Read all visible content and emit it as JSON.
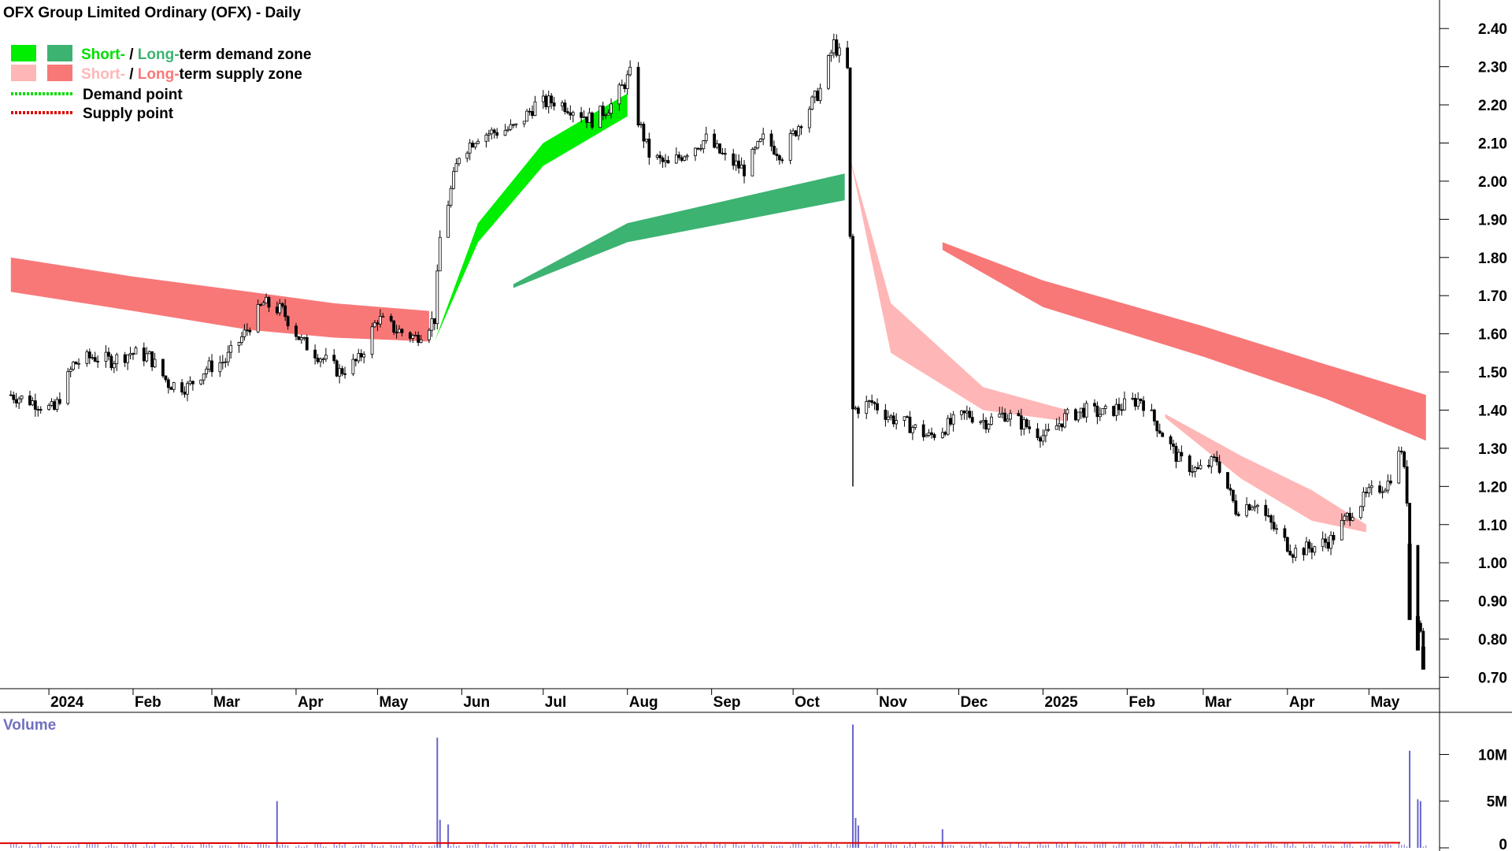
{
  "chart_data": {
    "type": "candlestick",
    "title": "OFX Group Limited Ordinary (OFX) - Daily",
    "y_ticks": [
      "2.40",
      "2.30",
      "2.20",
      "2.10",
      "2.00",
      "1.90",
      "1.80",
      "1.70",
      "1.60",
      "1.50",
      "1.40",
      "1.30",
      "1.20",
      "1.10",
      "1.00",
      "0.90",
      "0.80",
      "0.70"
    ],
    "ylim": [
      0.67,
      2.45
    ],
    "x_month_labels": [
      {
        "label": "2024",
        "month": "2024-01"
      },
      {
        "label": "Feb",
        "month": "2024-02"
      },
      {
        "label": "Mar",
        "month": "2024-03"
      },
      {
        "label": "Apr",
        "month": "2024-04"
      },
      {
        "label": "May",
        "month": "2024-05"
      },
      {
        "label": "Jun",
        "month": "2024-06"
      },
      {
        "label": "Jul",
        "month": "2024-07"
      },
      {
        "label": "Aug",
        "month": "2024-08"
      },
      {
        "label": "Sep",
        "month": "2024-09"
      },
      {
        "label": "Oct",
        "month": "2024-10"
      },
      {
        "label": "Nov",
        "month": "2024-11"
      },
      {
        "label": "Dec",
        "month": "2024-12"
      },
      {
        "label": "2025",
        "month": "2025-01"
      },
      {
        "label": "Feb",
        "month": "2025-02"
      },
      {
        "label": "Mar",
        "month": "2025-03"
      },
      {
        "label": "Apr",
        "month": "2025-04"
      },
      {
        "label": "May",
        "month": "2025-05"
      }
    ],
    "legend": [
      {
        "part1": "Short-",
        "part2": " / ",
        "part3": "Long-",
        "part4": "term demand zone",
        "swatch1": "#00ee00",
        "swatch2": "#3cb371",
        "color1": "#00dd00",
        "color2": "#3cb371"
      },
      {
        "part1": "Short-",
        "part2": " / ",
        "part3": "Long-",
        "part4": "term supply zone",
        "swatch1": "#ffb6b6",
        "swatch2": "#f87878",
        "color1": "#ffb6b6",
        "color2": "#f87878"
      },
      {
        "label": "Demand point",
        "line_color": "#00dd00"
      },
      {
        "label": "Supply point",
        "line_color": "#dd0000"
      }
    ],
    "close_series": [
      [
        "2023-12-18",
        1.44
      ],
      [
        "2023-12-27",
        1.42
      ],
      [
        "2024-01-03",
        1.4
      ],
      [
        "2024-01-10",
        1.52
      ],
      [
        "2024-01-17",
        1.54
      ],
      [
        "2024-01-24",
        1.53
      ],
      [
        "2024-01-31",
        1.55
      ],
      [
        "2024-02-07",
        1.54
      ],
      [
        "2024-02-14",
        1.47
      ],
      [
        "2024-02-21",
        1.46
      ],
      [
        "2024-02-28",
        1.51
      ],
      [
        "2024-03-06",
        1.53
      ],
      [
        "2024-03-13",
        1.6
      ],
      [
        "2024-03-20",
        1.68
      ],
      [
        "2024-03-27",
        1.66
      ],
      [
        "2024-04-03",
        1.58
      ],
      [
        "2024-04-10",
        1.54
      ],
      [
        "2024-04-17",
        1.5
      ],
      [
        "2024-04-24",
        1.53
      ],
      [
        "2024-05-01",
        1.64
      ],
      [
        "2024-05-08",
        1.61
      ],
      [
        "2024-05-15",
        1.59
      ],
      [
        "2024-05-22",
        1.64
      ],
      [
        "2024-05-24",
        1.85
      ],
      [
        "2024-05-31",
        2.07
      ],
      [
        "2024-06-07",
        2.12
      ],
      [
        "2024-06-14",
        2.13
      ],
      [
        "2024-06-21",
        2.14
      ],
      [
        "2024-06-28",
        2.2
      ],
      [
        "2024-07-05",
        2.21
      ],
      [
        "2024-07-12",
        2.19
      ],
      [
        "2024-07-19",
        2.16
      ],
      [
        "2024-07-26",
        2.2
      ],
      [
        "2024-08-02",
        2.28
      ],
      [
        "2024-08-05",
        2.16
      ],
      [
        "2024-08-09",
        2.07
      ],
      [
        "2024-08-16",
        2.04
      ],
      [
        "2024-08-23",
        2.08
      ],
      [
        "2024-08-30",
        2.11
      ],
      [
        "2024-09-06",
        2.06
      ],
      [
        "2024-09-13",
        2.03
      ],
      [
        "2024-09-20",
        2.11
      ],
      [
        "2024-09-27",
        2.07
      ],
      [
        "2024-10-04",
        2.16
      ],
      [
        "2024-10-11",
        2.24
      ],
      [
        "2024-10-16",
        2.36
      ],
      [
        "2024-10-21",
        2.29
      ],
      [
        "2024-10-23",
        1.4
      ],
      [
        "2024-10-30",
        1.42
      ],
      [
        "2024-11-06",
        1.38
      ],
      [
        "2024-11-13",
        1.36
      ],
      [
        "2024-11-20",
        1.33
      ],
      [
        "2024-11-27",
        1.36
      ],
      [
        "2024-12-04",
        1.39
      ],
      [
        "2024-12-11",
        1.37
      ],
      [
        "2024-12-18",
        1.39
      ],
      [
        "2025-01-02",
        1.33
      ],
      [
        "2025-01-09",
        1.38
      ],
      [
        "2025-01-16",
        1.4
      ],
      [
        "2025-01-23",
        1.39
      ],
      [
        "2025-01-30",
        1.41
      ],
      [
        "2025-02-06",
        1.43
      ],
      [
        "2025-02-13",
        1.35
      ],
      [
        "2025-02-20",
        1.27
      ],
      [
        "2025-02-27",
        1.24
      ],
      [
        "2025-03-06",
        1.27
      ],
      [
        "2025-03-13",
        1.14
      ],
      [
        "2025-03-20",
        1.16
      ],
      [
        "2025-03-27",
        1.09
      ],
      [
        "2025-04-03",
        1.03
      ],
      [
        "2025-04-10",
        1.04
      ],
      [
        "2025-04-17",
        1.06
      ],
      [
        "2025-04-24",
        1.13
      ],
      [
        "2025-05-01",
        1.18
      ],
      [
        "2025-05-08",
        1.21
      ],
      [
        "2025-05-13",
        1.3
      ],
      [
        "2025-05-15",
        1.17
      ],
      [
        "2025-05-16",
        1.05
      ],
      [
        "2025-05-19",
        0.86
      ],
      [
        "2025-05-21",
        0.78
      ],
      [
        "2025-05-22",
        0.74
      ]
    ],
    "gap_candles": [
      {
        "date": "2024-10-23",
        "high": 1.61,
        "low": 1.2
      }
    ],
    "volume": {
      "label": "Volume",
      "y_ticks": [
        "10M",
        "5M",
        "0"
      ],
      "ylim": [
        0,
        13.5
      ],
      "spikes": [
        [
          "2024-03-25",
          5.0
        ],
        [
          "2024-05-23",
          11.8
        ],
        [
          "2024-05-24",
          3.0
        ],
        [
          "2024-05-27",
          2.5
        ],
        [
          "2024-10-23",
          13.2
        ],
        [
          "2024-10-24",
          3.2
        ],
        [
          "2024-10-25",
          2.4
        ],
        [
          "2024-11-25",
          2.0
        ],
        [
          "2025-05-16",
          10.4
        ],
        [
          "2025-05-19",
          5.2
        ],
        [
          "2025-05-20",
          5.0
        ]
      ],
      "base_level": 0.3,
      "avg_color": "#dd0000",
      "bar_color": "#6666cc"
    },
    "zones": [
      {
        "kind": "long-supply",
        "color": "#f87878",
        "points": [
          [
            "2023-12-18",
            1.8,
            1.71
          ],
          [
            "2024-02-01",
            1.75,
            1.66
          ],
          [
            "2024-03-15",
            1.71,
            1.61
          ],
          [
            "2024-04-15",
            1.68,
            1.59
          ],
          [
            "2024-05-20",
            1.66,
            1.58
          ]
        ]
      },
      {
        "kind": "long-supply",
        "color": "#f87878",
        "points": [
          [
            "2024-11-25",
            1.84,
            1.82
          ],
          [
            "2025-01-01",
            1.74,
            1.67
          ],
          [
            "2025-03-01",
            1.62,
            1.54
          ],
          [
            "2025-04-15",
            1.52,
            1.43
          ],
          [
            "2025-05-22",
            1.44,
            1.32
          ]
        ]
      },
      {
        "kind": "short-demand",
        "color": "#00ee00",
        "points": [
          [
            "2024-05-22",
            1.58,
            1.58
          ],
          [
            "2024-06-07",
            1.89,
            1.84
          ],
          [
            "2024-07-01",
            2.1,
            2.04
          ],
          [
            "2024-08-01",
            2.23,
            2.17
          ]
        ]
      },
      {
        "kind": "long-demand",
        "color": "#3cb371",
        "points": [
          [
            "2024-06-20",
            1.73,
            1.72
          ],
          [
            "2024-08-01",
            1.89,
            1.84
          ],
          [
            "2024-10-20",
            2.02,
            1.95
          ]
        ]
      },
      {
        "kind": "short-supply",
        "color": "#ffb6b6",
        "points": [
          [
            "2024-10-22",
            2.06,
            2.06
          ],
          [
            "2024-11-06",
            1.68,
            1.55
          ],
          [
            "2024-12-10",
            1.46,
            1.4
          ],
          [
            "2025-01-10",
            1.4,
            1.37
          ]
        ]
      },
      {
        "kind": "short-supply",
        "color": "#ffb6b6",
        "points": [
          [
            "2025-02-15",
            1.39,
            1.38
          ],
          [
            "2025-03-15",
            1.28,
            1.22
          ],
          [
            "2025-04-10",
            1.19,
            1.11
          ],
          [
            "2025-04-30",
            1.1,
            1.08
          ]
        ]
      }
    ]
  }
}
